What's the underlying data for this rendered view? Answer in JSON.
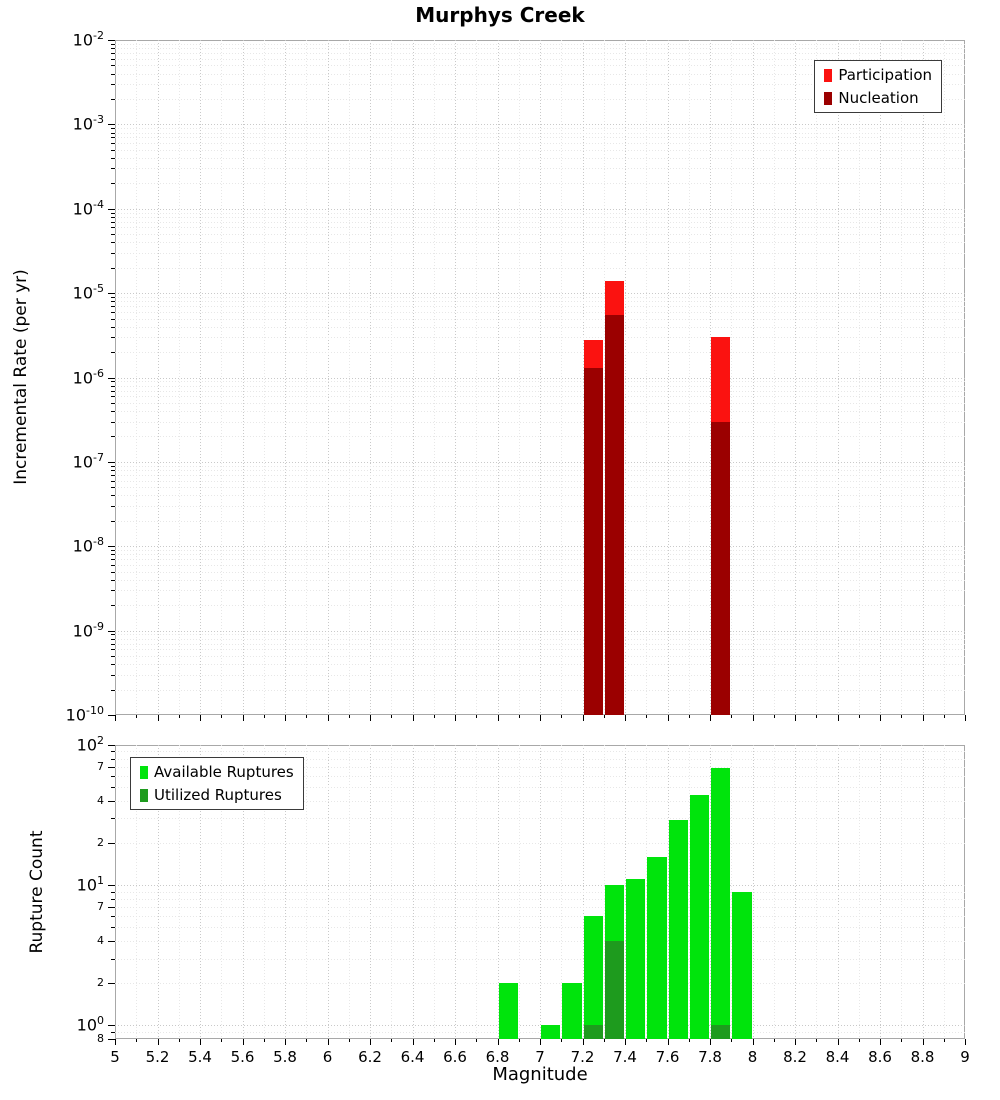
{
  "chart_data": [
    {
      "type": "bar",
      "panel": "top",
      "title": "Murphys Creek",
      "xlabel": "Magnitude",
      "ylabel": "Incremental Rate (per yr)",
      "x_range": [
        5,
        9
      ],
      "y_scale": "log",
      "y_range": [
        1e-10,
        0.01
      ],
      "x_ticks": [
        5,
        5.2,
        5.4,
        5.6,
        5.8,
        6,
        6.2,
        6.4,
        6.6,
        6.8,
        7,
        7.2,
        7.4,
        7.6,
        7.8,
        8,
        8.2,
        8.4,
        8.6,
        8.8,
        9
      ],
      "y_tick_exponents": [
        -2,
        -3,
        -4,
        -5,
        -6,
        -7,
        -8,
        -9,
        -10
      ],
      "bin_width": 0.1,
      "grid": true,
      "legend_position": "top-right",
      "series": [
        {
          "name": "Participation",
          "color": "#fb1210",
          "bins": [
            7.2,
            7.3,
            7.8
          ],
          "values": [
            2.8e-06,
            1.4e-05,
            3e-06
          ]
        },
        {
          "name": "Nucleation",
          "color": "#9b0000",
          "bins": [
            7.2,
            7.3,
            7.8
          ],
          "values": [
            1.3e-06,
            5.5e-06,
            3e-07
          ]
        }
      ]
    },
    {
      "type": "bar",
      "panel": "bottom",
      "xlabel": "Magnitude",
      "ylabel": "Rupture Count",
      "x_range": [
        5,
        9
      ],
      "y_scale": "log",
      "y_range": [
        0.8,
        100
      ],
      "x_ticks": [
        5,
        5.2,
        5.4,
        5.6,
        5.8,
        6,
        6.2,
        6.4,
        6.6,
        6.8,
        7,
        7.2,
        7.4,
        7.6,
        7.8,
        8,
        8.2,
        8.4,
        8.6,
        8.8,
        9
      ],
      "y_ticks": [
        {
          "label": "10^2",
          "value": 100
        },
        {
          "label": "7",
          "value": 70
        },
        {
          "label": "4",
          "value": 40
        },
        {
          "label": "2",
          "value": 20
        },
        {
          "label": "10^1",
          "value": 10
        },
        {
          "label": "7",
          "value": 7
        },
        {
          "label": "4",
          "value": 4
        },
        {
          "label": "2",
          "value": 2
        },
        {
          "label": "10^0",
          "value": 1
        },
        {
          "label": "8",
          "value": 0.8
        }
      ],
      "bin_width": 0.1,
      "grid": true,
      "legend_position": "top-left",
      "series": [
        {
          "name": "Available Ruptures",
          "color": "#00e40c",
          "bins": [
            6.8,
            7.0,
            7.1,
            7.2,
            7.3,
            7.4,
            7.5,
            7.6,
            7.7,
            7.8,
            7.9
          ],
          "values": [
            2,
            1,
            2,
            6,
            10,
            11,
            16,
            29,
            44,
            68,
            9
          ]
        },
        {
          "name": "Utilized Ruptures",
          "color": "#1e9b1e",
          "bins": [
            7.2,
            7.3,
            7.8
          ],
          "values": [
            1,
            4,
            1
          ]
        }
      ]
    }
  ]
}
